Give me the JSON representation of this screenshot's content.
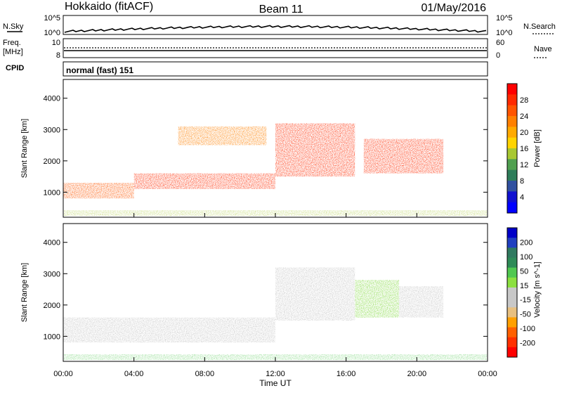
{
  "header": {
    "station": "Hokkaido (fitACF)",
    "beam": "Beam 11",
    "date": "01/May/2016"
  },
  "strip": {
    "nsky_label": "N.Sky",
    "nsky_ticks": [
      "10^5",
      "10^0"
    ],
    "nsearch_label": "N.Search",
    "freq_label_line1": "Freq.",
    "freq_label_line2": "[MHz]",
    "freq_ticks": [
      "10",
      "8"
    ],
    "nave_label": "Nave",
    "nave_ticks": [
      "60",
      "0"
    ],
    "cpid_label": "CPID",
    "cpid_value": "normal (fast) 151"
  },
  "chart_data": [
    {
      "type": "heatmap",
      "title": "",
      "quantity_label": "Power [dB]",
      "xlabel": "Time UT",
      "ylabel": "Slant Range [km]",
      "x_ticks": [
        "00:00",
        "04:00",
        "08:00",
        "12:00",
        "16:00",
        "20:00",
        "00:00"
      ],
      "y_ticks": [
        "1000",
        "2000",
        "3000",
        "4000"
      ],
      "ylim": [
        200,
        4600
      ],
      "colorbar": {
        "ticks": [
          "28",
          "24",
          "20",
          "16",
          "12",
          "8",
          "4"
        ],
        "colors": [
          "#ff0000",
          "#ff2a00",
          "#ff5500",
          "#ff8000",
          "#ffaa00",
          "#ffd400",
          "#a8c832",
          "#50a050",
          "#2e7d5a",
          "#3050a0",
          "#1010d0",
          "#0000ff"
        ]
      },
      "echo_bands": [
        {
          "t_start": 0.0,
          "t_end": 4.0,
          "range_start": 800,
          "range_end": 1300,
          "power": 24
        },
        {
          "t_start": 4.0,
          "t_end": 12.0,
          "range_start": 1100,
          "range_end": 1600,
          "power": 26
        },
        {
          "t_start": 6.5,
          "t_end": 11.5,
          "range_start": 2500,
          "range_end": 3100,
          "power": 22
        },
        {
          "t_start": 12.0,
          "t_end": 16.5,
          "range_start": 1500,
          "range_end": 3200,
          "power": 28
        },
        {
          "t_start": 17.0,
          "t_end": 21.5,
          "range_start": 1600,
          "range_end": 2700,
          "power": 26
        }
      ]
    },
    {
      "type": "heatmap",
      "title": "",
      "quantity_label": "Velocity [m s^-1]",
      "xlabel": "Time UT",
      "ylabel": "Slant Range [km]",
      "x_ticks": [
        "00:00",
        "04:00",
        "08:00",
        "12:00",
        "16:00",
        "20:00",
        "00:00"
      ],
      "y_ticks": [
        "1000",
        "2000",
        "3000",
        "4000"
      ],
      "ylim": [
        200,
        4600
      ],
      "colorbar": {
        "ticks": [
          "200",
          "100",
          "50",
          "15",
          "-15",
          "-50",
          "-100",
          "-200"
        ],
        "colors": [
          "#0000c8",
          "#2040c0",
          "#307a60",
          "#2e8b57",
          "#50c850",
          "#8ce040",
          "#c8c8c8",
          "#c8c8c8",
          "#e8c080",
          "#ffa000",
          "#ff6000",
          "#ff3000",
          "#ff0000"
        ]
      },
      "echo_bands": [
        {
          "t_start": 0.0,
          "t_end": 12.0,
          "range_start": 800,
          "range_end": 1600,
          "velocity": 0
        },
        {
          "t_start": 12.0,
          "t_end": 16.5,
          "range_start": 1500,
          "range_end": 3200,
          "velocity": 5
        },
        {
          "t_start": 16.5,
          "t_end": 19.0,
          "range_start": 1600,
          "range_end": 2800,
          "velocity": 60
        },
        {
          "t_start": 19.0,
          "t_end": 21.5,
          "range_start": 1600,
          "range_end": 2600,
          "velocity": 0
        }
      ]
    }
  ]
}
